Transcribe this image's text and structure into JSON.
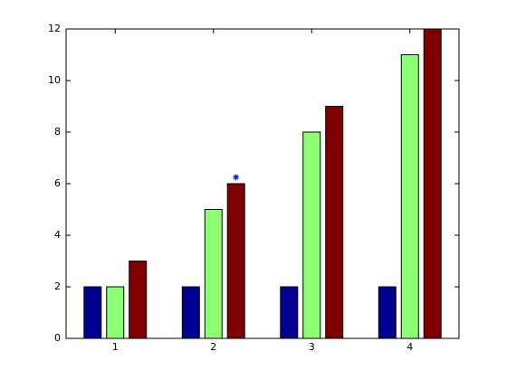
{
  "chart_data": {
    "type": "bar",
    "x": [
      1,
      2,
      3,
      4
    ],
    "xlim": [
      0.5,
      4.5
    ],
    "xticks": [
      1,
      2,
      3,
      4
    ],
    "ylim": [
      0,
      12
    ],
    "yticks": [
      0,
      2,
      4,
      6,
      8,
      10,
      12
    ],
    "grid": false,
    "series": [
      {
        "color": "#000090",
        "values": [
          2,
          2,
          2,
          2
        ]
      },
      {
        "color": "#8cff73",
        "values": [
          2,
          5,
          8,
          11
        ]
      },
      {
        "color": "#800000",
        "values": [
          3,
          6,
          9,
          12
        ]
      }
    ],
    "points": {
      "color": "#0000ff",
      "x": [
        2.23
      ],
      "y": [
        6.25
      ]
    }
  }
}
